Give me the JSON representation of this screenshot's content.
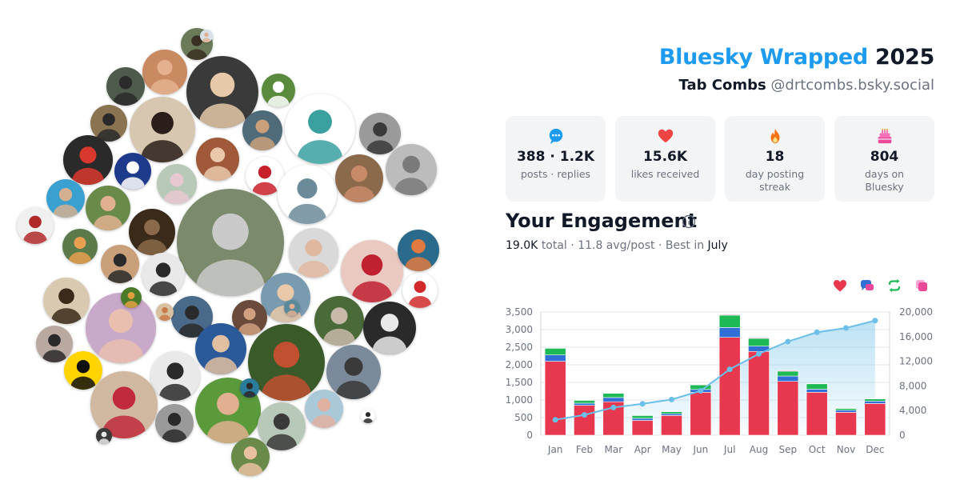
{
  "header": {
    "brand": "Bluesky Wrapped",
    "year": "2025",
    "user_name": "Tab Combs",
    "handle": "@drtcombs.bsky.social"
  },
  "stats": [
    {
      "icon": "speech-bubble-icon",
      "value": "388 · 1.2K",
      "label": "posts · replies",
      "color": "#1d9bf0"
    },
    {
      "icon": "heart-icon",
      "value": "15.6K",
      "label": "likes received",
      "color": "#ef4444"
    },
    {
      "icon": "flame-icon",
      "value": "18",
      "label": "day posting streak",
      "color": "#f97316"
    },
    {
      "icon": "cake-icon",
      "value": "804",
      "label": "days on Bluesky",
      "color": "#ec4899"
    }
  ],
  "engagement": {
    "title": "Your Engagement",
    "total_value": "19.0K",
    "total_label": "total",
    "avg_text": "11.8 avg/post",
    "best_label": "Best in",
    "best_month": "July",
    "legend": [
      {
        "icon": "heart-icon",
        "color": "#e8384f"
      },
      {
        "icon": "reply-icon",
        "color": "#2f6fd6"
      },
      {
        "icon": "repost-icon",
        "color": "#1db954"
      },
      {
        "icon": "quote-icon",
        "color": "#ec4899"
      }
    ]
  },
  "chart_data": {
    "type": "bar",
    "stacked": true,
    "categories": [
      "Jan",
      "Feb",
      "Mar",
      "Apr",
      "May",
      "Jun",
      "Jul",
      "Aug",
      "Sep",
      "Oct",
      "Nov",
      "Dec"
    ],
    "series": [
      {
        "color": "#e8384f",
        "values": [
          2100,
          850,
          950,
          420,
          560,
          1220,
          2780,
          2380,
          1530,
          1220,
          650,
          900
        ]
      },
      {
        "color": "#2f6fd6",
        "values": [
          180,
          60,
          120,
          60,
          50,
          80,
          280,
          150,
          150,
          90,
          60,
          70
        ]
      },
      {
        "color": "#1db954",
        "values": [
          190,
          80,
          120,
          80,
          60,
          130,
          350,
          220,
          140,
          150,
          50,
          60
        ]
      },
      {
        "color": "#ec4899",
        "values": [
          10,
          10,
          10,
          10,
          10,
          10,
          20,
          20,
          20,
          10,
          10,
          10
        ]
      },
      {
        "type": "area",
        "axis": "right",
        "color": "#6bbfe8",
        "values": [
          2500,
          3300,
          4500,
          5100,
          5800,
          7200,
          10700,
          13200,
          15200,
          16700,
          17400,
          18600
        ]
      }
    ],
    "y_left": {
      "ylim": [
        0,
        3500
      ],
      "ticks": [
        "0",
        "500",
        "1,000",
        "1,500",
        "2,000",
        "2,500",
        "3,000",
        "3,500"
      ]
    },
    "y_right": {
      "ylim": [
        0,
        20000
      ],
      "ticks": [
        "0",
        "4,000",
        "8,000",
        "12,000",
        "16,000",
        "20,000"
      ]
    },
    "grid": true,
    "legend": "top-right"
  },
  "avatars": [
    {
      "bg": "#6b7b5a",
      "fg": "#3a3024"
    },
    {
      "bg": "#c98a62",
      "fg": "#e4b08e"
    },
    {
      "bg": "#4e5a4c",
      "fg": "#2b2b2b"
    },
    {
      "bg": "#3a3a3a",
      "fg": "#e5c9a8"
    },
    {
      "bg": "#5a8a3c",
      "fg": "#ffffff"
    },
    {
      "bg": "#8a7350",
      "fg": "#2a2a2a"
    },
    {
      "bg": "#d8c7b0",
      "fg": "#2b1e1a"
    },
    {
      "bg": "#4f6b7a",
      "fg": "#c9a07a"
    },
    {
      "bg": "#ffffff",
      "fg": "#3aa0a0"
    },
    {
      "bg": "#9a9a9a",
      "fg": "#3a3a3a"
    },
    {
      "bg": "#2a2a2a",
      "fg": "#d9382e"
    },
    {
      "bg": "#1e3a8a",
      "fg": "#ffffff"
    },
    {
      "bg": "#b8c9b8",
      "fg": "#e8c8d0"
    },
    {
      "bg": "#a05a3a",
      "fg": "#e9c9a9"
    },
    {
      "bg": "#ffffff",
      "fg": "#c8202a"
    },
    {
      "bg": "#ffffff",
      "fg": "#6b8a9a"
    },
    {
      "bg": "#8a6a4a",
      "fg": "#c98a6a"
    },
    {
      "bg": "#bcbcbc",
      "fg": "#7a7a7a"
    },
    {
      "bg": "#3aa0d0",
      "fg": "#d4b090"
    },
    {
      "bg": "#6a8a4a",
      "fg": "#e0b090"
    },
    {
      "bg": "#f0f0f0",
      "fg": "#b02a2a"
    },
    {
      "bg": "#3a2a1a",
      "fg": "#8a6a4a"
    },
    {
      "bg": "#5a7a4a",
      "fg": "#e8a050"
    },
    {
      "bg": "#c9a07a",
      "fg": "#2a2a2a"
    },
    {
      "bg": "#7a8a6a",
      "fg": "#c9c9c9"
    },
    {
      "bg": "#d9d9d9",
      "fg": "#e0b8a0"
    },
    {
      "bg": "#e9c9c0",
      "fg": "#c02030"
    },
    {
      "bg": "#2a6a8a",
      "fg": "#e07a40"
    },
    {
      "bg": "#e9e9e9",
      "fg": "#2a2a2a"
    },
    {
      "bg": "#7a9ab0",
      "fg": "#e9c9a9"
    },
    {
      "bg": "#ffffff",
      "fg": "#d02a2a"
    },
    {
      "bg": "#d9c9b0",
      "fg": "#3a2a1a"
    },
    {
      "bg": "#c9a9c9",
      "fg": "#e9c0b0"
    },
    {
      "bg": "#4a6a8a",
      "fg": "#2a2a2a"
    },
    {
      "bg": "#6a4a3a",
      "fg": "#d0a080"
    },
    {
      "bg": "#4a6a3a",
      "fg": "#c9b9a9"
    },
    {
      "bg": "#2a2a2a",
      "fg": "#e9e9e9"
    },
    {
      "bg": "#3a5a2a",
      "fg": "#c05030"
    },
    {
      "bg": "#b9a9a0",
      "fg": "#2a2a2a"
    },
    {
      "bg": "#2a5a9a",
      "fg": "#e0c0a0"
    },
    {
      "bg": "#ffd400",
      "fg": "#111111"
    },
    {
      "bg": "#e9e9e9",
      "fg": "#2a2a2a"
    },
    {
      "bg": "#7a8a9a",
      "fg": "#3a3a3a"
    },
    {
      "bg": "#d0b9a0",
      "fg": "#c02a3a"
    },
    {
      "bg": "#5a9a3a",
      "fg": "#e0b090"
    },
    {
      "bg": "#9a9a9a",
      "fg": "#2a2a2a"
    },
    {
      "bg": "#b9c9b9",
      "fg": "#3a3a3a"
    },
    {
      "bg": "#a9c9d9",
      "fg": "#e0b0a0"
    },
    {
      "bg": "#6a8a4a",
      "fg": "#e9c0a0"
    },
    {
      "bg": "#d9e0e9",
      "fg": "#e0b090"
    },
    {
      "bg": "#4a7a2a",
      "fg": "#e0a040"
    },
    {
      "bg": "#2a7a9a",
      "fg": "#2a2a2a"
    },
    {
      "bg": "#ffffff",
      "fg": "#2a2a2a"
    },
    {
      "bg": "#3a3a3a",
      "fg": "#e9e9e9"
    },
    {
      "bg": "#5a8a9a",
      "fg": "#e0b090"
    },
    {
      "bg": "#d9c0a0",
      "fg": "#c97a4a"
    }
  ]
}
